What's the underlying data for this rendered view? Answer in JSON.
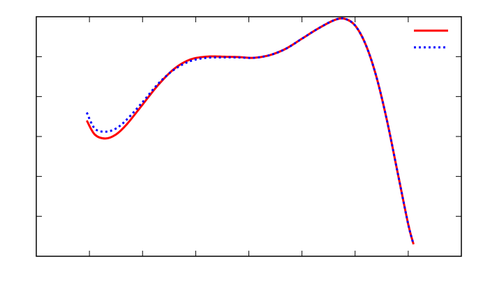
{
  "chart_data": {
    "type": "line",
    "title": "",
    "xlabel": "",
    "ylabel": "",
    "xlim": [
      0,
      8
    ],
    "ylim": [
      0,
      6
    ],
    "grid": false,
    "legend_position": "top-right",
    "x_ticks": [
      1,
      2,
      3,
      4,
      5,
      6,
      7
    ],
    "y_ticks": [
      1,
      2,
      3,
      4,
      5
    ],
    "series": [
      {
        "color": "#ff0000",
        "line_style": "solid",
        "x": [
          0.95,
          1.1,
          1.3,
          1.5,
          1.7,
          2.0,
          2.3,
          2.6,
          2.9,
          3.2,
          3.5,
          3.8,
          4.1,
          4.4,
          4.7,
          5.0,
          5.3,
          5.6,
          5.8,
          6.0,
          6.2,
          6.4,
          6.6,
          6.8,
          7.0,
          7.1
        ],
        "y": [
          3.4,
          3.05,
          2.95,
          3.05,
          3.3,
          3.8,
          4.3,
          4.7,
          4.93,
          5.0,
          5.0,
          4.99,
          4.97,
          5.04,
          5.2,
          5.45,
          5.7,
          5.91,
          5.95,
          5.78,
          5.3,
          4.5,
          3.4,
          2.1,
          0.8,
          0.3
        ]
      },
      {
        "color": "#0000ff",
        "line_style": "dotted",
        "x": [
          0.95,
          1.1,
          1.3,
          1.5,
          1.7,
          2.0,
          2.3,
          2.6,
          2.9,
          3.2,
          3.5,
          3.8,
          4.1,
          4.4,
          4.7,
          5.0,
          5.3,
          5.6,
          5.8,
          6.0,
          6.2,
          6.4,
          6.6,
          6.8,
          7.0,
          7.1
        ],
        "y": [
          3.6,
          3.2,
          3.12,
          3.2,
          3.42,
          3.86,
          4.33,
          4.68,
          4.89,
          4.97,
          4.98,
          4.98,
          4.97,
          5.04,
          5.2,
          5.45,
          5.7,
          5.91,
          5.95,
          5.78,
          5.3,
          4.5,
          3.4,
          2.1,
          0.8,
          0.3
        ]
      }
    ]
  }
}
